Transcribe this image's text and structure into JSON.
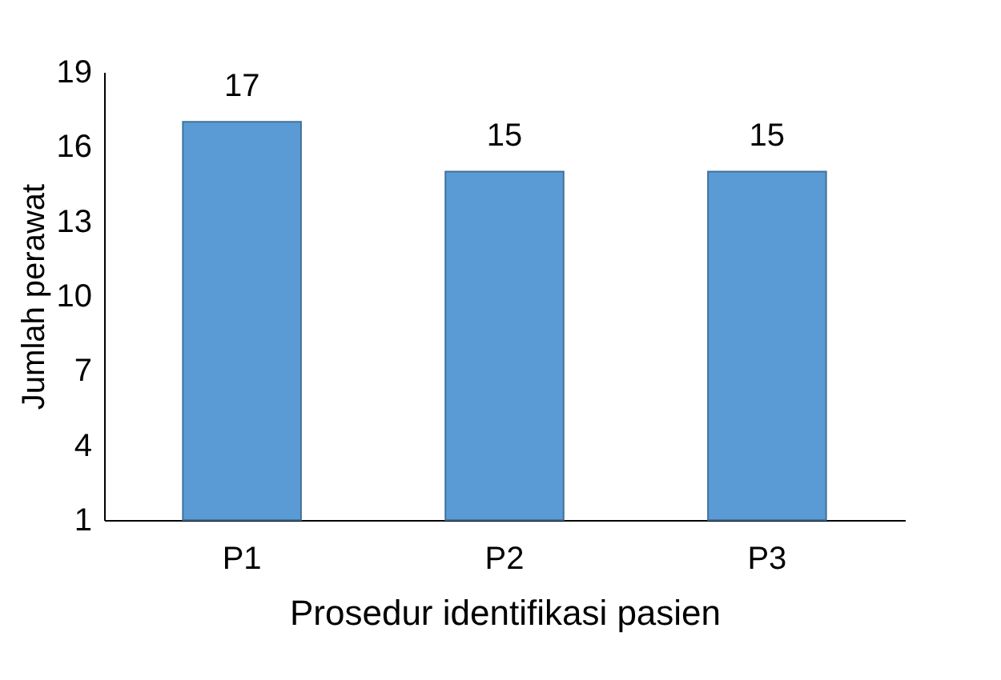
{
  "chart_data": {
    "type": "bar",
    "xlabel": "Prosedur identifikasi pasien",
    "ylabel": "Jumlah perawat",
    "categories": [
      "P1",
      "P2",
      "P3"
    ],
    "values": [
      17,
      15,
      15
    ],
    "color": "#5b9bd5",
    "ylim": [
      1,
      19
    ],
    "yticks": [
      1,
      4,
      7,
      10,
      13,
      16,
      19
    ],
    "data_labels": true,
    "grid": false
  }
}
